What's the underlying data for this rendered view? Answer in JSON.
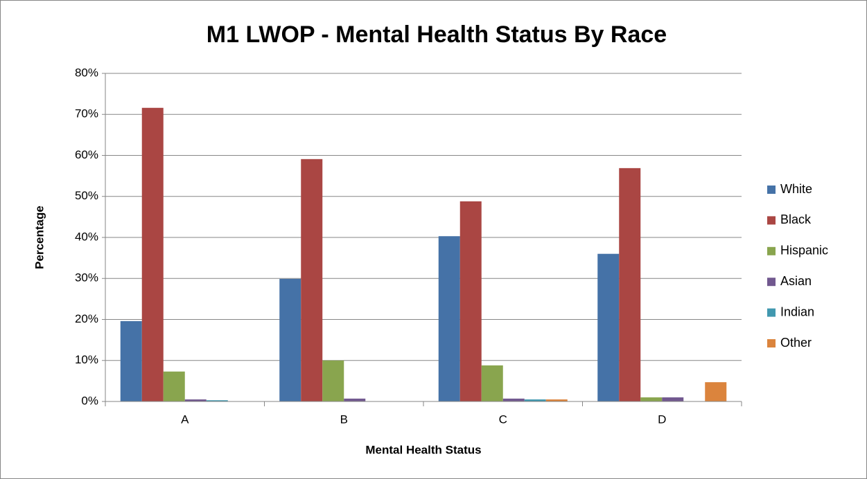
{
  "chart_data": {
    "type": "bar",
    "title": "M1 LWOP - Mental Health Status By Race",
    "x_label": "Mental Health Status",
    "y_label": "Percentage",
    "categories": [
      "A",
      "B",
      "C",
      "D"
    ],
    "series": [
      {
        "name": "White",
        "color": "#4572a7",
        "values": [
          19.6,
          29.9,
          40.3,
          36.0
        ]
      },
      {
        "name": "Black",
        "color": "#aa4643",
        "values": [
          71.6,
          59.1,
          48.8,
          56.9
        ]
      },
      {
        "name": "Hispanic",
        "color": "#89a54e",
        "values": [
          7.3,
          10.0,
          8.8,
          1.0
        ]
      },
      {
        "name": "Asian",
        "color": "#71588f",
        "values": [
          0.5,
          0.7,
          0.7,
          1.0
        ]
      },
      {
        "name": "Indian",
        "color": "#4198af",
        "values": [
          0.3,
          0,
          0.5,
          0
        ]
      },
      {
        "name": "Other",
        "color": "#db843d",
        "values": [
          0,
          0,
          0.5,
          4.7
        ]
      }
    ],
    "ylim": [
      0,
      80
    ],
    "yticks": [
      {
        "value": 0,
        "label": "0%"
      },
      {
        "value": 10,
        "label": "10%"
      },
      {
        "value": 20,
        "label": "20%"
      },
      {
        "value": 30,
        "label": "30%"
      },
      {
        "value": 40,
        "label": "40%"
      },
      {
        "value": 50,
        "label": "50%"
      },
      {
        "value": 60,
        "label": "60%"
      },
      {
        "value": 70,
        "label": "70%"
      },
      {
        "value": 80,
        "label": "80%"
      }
    ],
    "grid": true,
    "legend": "right"
  }
}
